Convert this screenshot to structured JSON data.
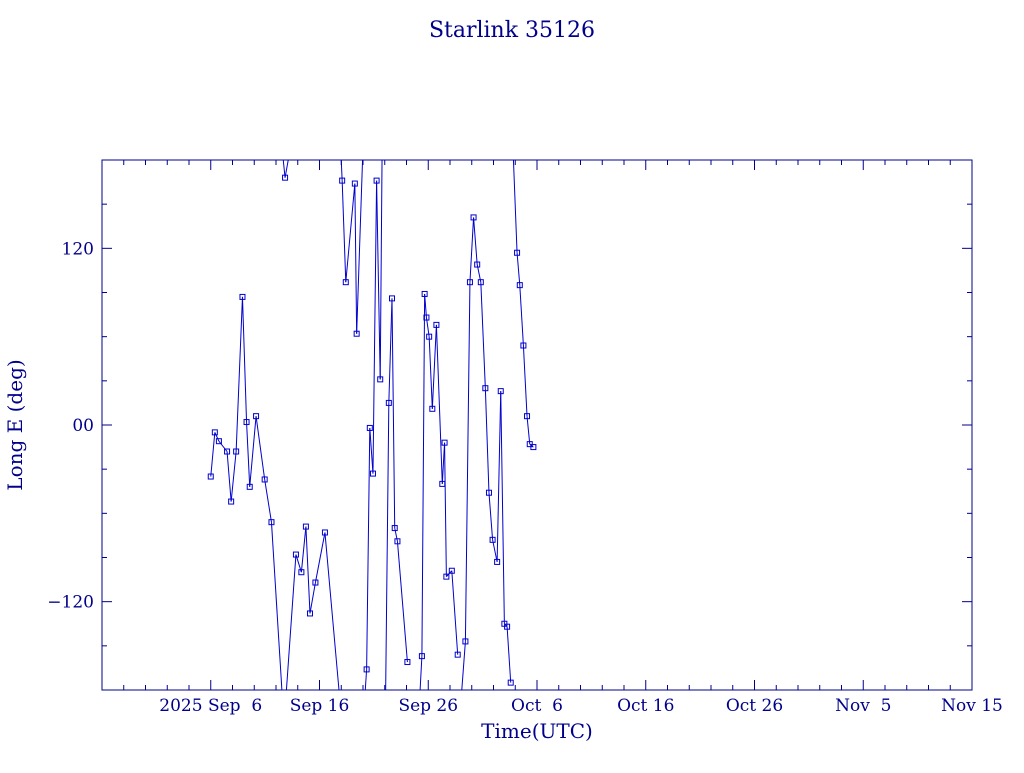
{
  "chart_data": {
    "type": "scatter",
    "title": "Starlink 35126",
    "xlabel": "Time(UTC)",
    "ylabel": "Long E (deg)",
    "xlim": [
      "2025-08-27",
      "2025-11-15"
    ],
    "ylim": [
      -180,
      180
    ],
    "xticks": [
      {
        "date": "2025-09-06",
        "label": "2025 Sep  6"
      },
      {
        "date": "2025-09-16",
        "label": "Sep 16"
      },
      {
        "date": "2025-09-26",
        "label": "Sep 26"
      },
      {
        "date": "2025-10-06",
        "label": "Oct  6"
      },
      {
        "date": "2025-10-16",
        "label": "Oct 16"
      },
      {
        "date": "2025-10-26",
        "label": "Oct 26"
      },
      {
        "date": "2025-11-05",
        "label": "Nov  5"
      },
      {
        "date": "2025-11-15",
        "label": "Nov 15"
      }
    ],
    "yticks": [
      {
        "value": 120,
        "label": "120"
      },
      {
        "value": 0,
        "label": "00"
      },
      {
        "value": -120,
        "label": "−120"
      }
    ],
    "grid": false,
    "wrap": true,
    "colors": {
      "axis": "#00008b",
      "series": "#0000cd"
    },
    "series": [
      {
        "marker": "square",
        "points": [
          {
            "t": "2025-09-06T00:00",
            "y": -35
          },
          {
            "t": "2025-09-06T09:00",
            "y": -5
          },
          {
            "t": "2025-09-06T18:00",
            "y": -11
          },
          {
            "t": "2025-09-07T12:00",
            "y": -18
          },
          {
            "t": "2025-09-07T21:00",
            "y": -52
          },
          {
            "t": "2025-09-08T08:00",
            "y": -18
          },
          {
            "t": "2025-09-08T22:00",
            "y": 87
          },
          {
            "t": "2025-09-09T07:00",
            "y": 2
          },
          {
            "t": "2025-09-09T14:00",
            "y": -42
          },
          {
            "t": "2025-09-10T04:00",
            "y": 6
          },
          {
            "t": "2025-09-10T23:00",
            "y": -37
          },
          {
            "t": "2025-09-11T14:00",
            "y": -66
          },
          {
            "t": "2025-09-12T13:00",
            "y": -180
          },
          {
            "t": "2025-09-12T16:00",
            "y": 180
          },
          {
            "t": "2025-09-12T20:00",
            "y": 168
          },
          {
            "t": "2025-09-13T03:00",
            "y": 180
          },
          {
            "t": "2025-09-12T23:00",
            "y": -180
          },
          {
            "t": "2025-09-13T20:00",
            "y": -88
          },
          {
            "t": "2025-09-14T08:00",
            "y": -100
          },
          {
            "t": "2025-09-14T18:00",
            "y": -69
          },
          {
            "t": "2025-09-15T03:00",
            "y": -128
          },
          {
            "t": "2025-09-15T15:00",
            "y": -107
          },
          {
            "t": "2025-09-16T12:00",
            "y": -73
          },
          {
            "t": "2025-09-17T19:00",
            "y": -180
          },
          {
            "t": "2025-09-18T00:00",
            "y": 180
          },
          {
            "t": "2025-09-18T02:00",
            "y": 166
          },
          {
            "t": "2025-09-18T10:00",
            "y": 97
          },
          {
            "t": "2025-09-19T06:00",
            "y": 164
          },
          {
            "t": "2025-09-19T10:00",
            "y": 62
          },
          {
            "t": "2025-09-19T23:00",
            "y": 180
          },
          {
            "t": "2025-09-20T05:00",
            "y": -180
          },
          {
            "t": "2025-09-20T08:00",
            "y": -166
          },
          {
            "t": "2025-09-20T15:00",
            "y": -2
          },
          {
            "t": "2025-09-20T22:00",
            "y": -33
          },
          {
            "t": "2025-09-21T06:00",
            "y": 166
          },
          {
            "t": "2025-09-21T14:00",
            "y": 31
          },
          {
            "t": "2025-09-21T18:00",
            "y": 180
          },
          {
            "t": "2025-09-22T02:00",
            "y": -180
          },
          {
            "t": "2025-09-22T09:00",
            "y": 15
          },
          {
            "t": "2025-09-22T16:00",
            "y": 86
          },
          {
            "t": "2025-09-22T22:00",
            "y": -70
          },
          {
            "t": "2025-09-23T04:00",
            "y": -79
          },
          {
            "t": "2025-09-24T02:00",
            "y": -161
          },
          {
            "t": "2025-09-24T11:00",
            "y": 180
          },
          {
            "t": "2025-09-25T06:00",
            "y": -180
          },
          {
            "t": "2025-09-25T10:00",
            "y": -157
          },
          {
            "t": "2025-09-25T16:00",
            "y": 89
          },
          {
            "t": "2025-09-25T20:00",
            "y": 73
          },
          {
            "t": "2025-09-26T02:00",
            "y": 60
          },
          {
            "t": "2025-09-26T09:00",
            "y": 11
          },
          {
            "t": "2025-09-26T18:00",
            "y": 68
          },
          {
            "t": "2025-09-27T07:00",
            "y": -40
          },
          {
            "t": "2025-09-27T12:00",
            "y": -12
          },
          {
            "t": "2025-09-27T16:00",
            "y": -103
          },
          {
            "t": "2025-09-28T04:00",
            "y": -99
          },
          {
            "t": "2025-09-28T17:00",
            "y": -156
          },
          {
            "t": "2025-09-29T02:00",
            "y": 180
          }
        ]
      },
      {
        "marker": "square",
        "points": [
          {
            "t": "2025-09-29T02:00",
            "y": -180
          },
          {
            "t": "2025-09-29T10:00",
            "y": -147
          },
          {
            "t": "2025-09-29T20:00",
            "y": 97
          },
          {
            "t": "2025-09-30T04:00",
            "y": 141
          },
          {
            "t": "2025-09-30T12:00",
            "y": 109
          },
          {
            "t": "2025-09-30T20:00",
            "y": 97
          },
          {
            "t": "2025-10-01T06:00",
            "y": 25
          },
          {
            "t": "2025-10-01T14:00",
            "y": -46
          },
          {
            "t": "2025-10-01T22:00",
            "y": -78
          },
          {
            "t": "2025-10-02T08:00",
            "y": -93
          },
          {
            "t": "2025-10-02T16:00",
            "y": 23
          },
          {
            "t": "2025-10-03T00:00",
            "y": -135
          },
          {
            "t": "2025-10-03T06:00",
            "y": -137
          },
          {
            "t": "2025-10-03T14:00",
            "y": -175
          },
          {
            "t": "2025-10-03T20:00",
            "y": 180
          },
          {
            "t": "2025-10-04T04:00",
            "y": 117
          },
          {
            "t": "2025-10-04T10:00",
            "y": 95
          },
          {
            "t": "2025-10-04T18:00",
            "y": 54
          },
          {
            "t": "2025-10-05T02:00",
            "y": 6
          },
          {
            "t": "2025-10-05T08:00",
            "y": -13
          },
          {
            "t": "2025-10-05T16:00",
            "y": -15
          }
        ]
      }
    ]
  }
}
